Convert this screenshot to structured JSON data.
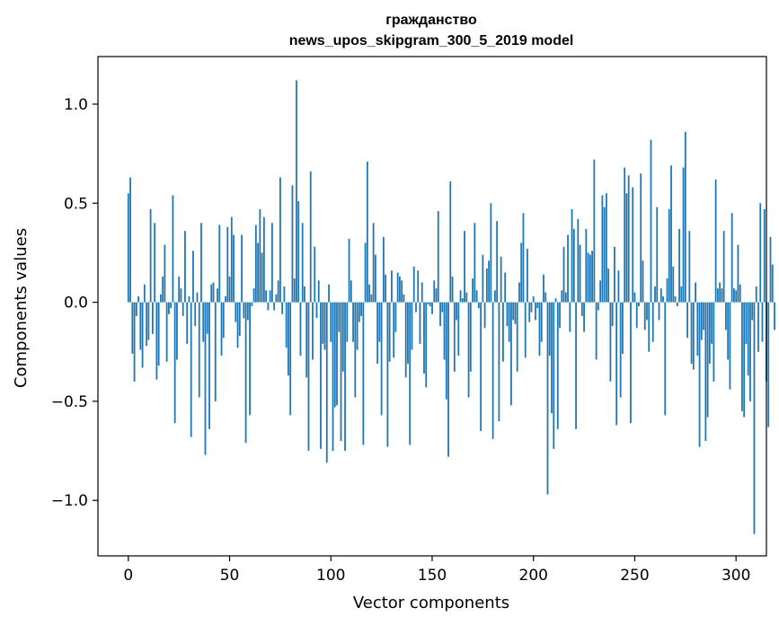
{
  "chart_data": {
    "type": "bar",
    "title_line1": "гражданство",
    "title_line2": "news_upos_skipgram_300_5_2019 model",
    "xlabel": "Vector components",
    "ylabel": "Components values",
    "xlim": [
      -15,
      315
    ],
    "ylim": [
      -1.28,
      1.24
    ],
    "xticks": [
      0,
      50,
      100,
      150,
      200,
      250,
      300
    ],
    "xtick_labels": [
      "0",
      "50",
      "100",
      "150",
      "200",
      "250",
      "300"
    ],
    "yticks": [
      -1.0,
      -0.5,
      0.0,
      0.5,
      1.0
    ],
    "ytick_labels": [
      "−1.0",
      "−0.5",
      "0.0",
      "0.5",
      "1.0"
    ],
    "grid": false,
    "bar_color": "#1f77b4",
    "values": [
      0.55,
      0.63,
      -0.26,
      -0.4,
      -0.07,
      0.03,
      -0.24,
      -0.33,
      0.09,
      -0.22,
      -0.19,
      0.47,
      -0.16,
      0.4,
      -0.39,
      -0.32,
      0.04,
      0.13,
      0.29,
      -0.3,
      -0.06,
      -0.03,
      0.54,
      -0.61,
      -0.29,
      0.13,
      0.07,
      -0.07,
      0.36,
      -0.21,
      0.03,
      -0.68,
      0.26,
      -0.12,
      0.05,
      -0.48,
      0.4,
      -0.2,
      -0.77,
      -0.16,
      -0.64,
      0.09,
      0.1,
      -0.5,
      0.07,
      0.39,
      -0.27,
      -0.18,
      0.03,
      0.38,
      0.13,
      0.43,
      0.34,
      -0.1,
      -0.23,
      -0.17,
      0.34,
      -0.08,
      -0.71,
      -0.09,
      -0.57,
      -0.02,
      0.07,
      0.39,
      0.3,
      0.47,
      0.25,
      0.43,
      0.06,
      -0.04,
      0.06,
      0.4,
      -0.04,
      0.04,
      0.11,
      0.63,
      -0.06,
      0.08,
      -0.23,
      -0.37,
      -0.57,
      0.59,
      0.12,
      1.12,
      0.51,
      -0.27,
      0.4,
      0.08,
      -0.38,
      -0.75,
      0.66,
      -0.29,
      0.28,
      -0.08,
      0.11,
      -0.74,
      -0.21,
      -0.24,
      -0.81,
      0.09,
      -0.2,
      -0.75,
      -0.53,
      -0.52,
      -0.15,
      -0.7,
      -0.35,
      -0.75,
      -0.2,
      0.32,
      0.11,
      -0.2,
      -0.48,
      -0.24,
      -0.1,
      -0.07,
      -0.72,
      0.3,
      0.71,
      0.09,
      0.04,
      0.4,
      0.24,
      -0.31,
      -0.2,
      -0.57,
      0.33,
      0.14,
      -0.73,
      -0.3,
      0.16,
      -0.28,
      -0.15,
      0.15,
      0.13,
      0.11,
      0.04,
      -0.38,
      -0.31,
      -0.72,
      -0.24,
      0.18,
      -0.05,
      0.16,
      -0.21,
      0.1,
      -0.36,
      -0.43,
      -0.01,
      -0.02,
      -0.06,
      0.11,
      0.07,
      0.46,
      -0.12,
      -0.05,
      -0.29,
      -0.49,
      -0.78,
      0.61,
      0.13,
      -0.35,
      -0.09,
      -0.27,
      0.06,
      0.02,
      0.36,
      0.05,
      -0.48,
      -0.35,
      0.12,
      0.4,
      0.06,
      -0.03,
      -0.65,
      0.24,
      -0.13,
      0.17,
      0.21,
      0.5,
      -0.69,
      0.06,
      0.41,
      -0.6,
      0.23,
      -0.3,
      0.15,
      -0.12,
      -0.2,
      -0.52,
      -0.09,
      -0.11,
      -0.35,
      0.1,
      0.3,
      0.45,
      -0.28,
      0.27,
      -0.1,
      -0.05,
      0.03,
      -0.09,
      -0.03,
      -0.27,
      -0.2,
      0.14,
      0.05,
      -0.97,
      -0.27,
      -0.56,
      -0.74,
      0.02,
      -0.64,
      -0.13,
      0.06,
      0.28,
      0.05,
      0.34,
      -0.15,
      0.47,
      0.37,
      -0.64,
      0.42,
      0.29,
      -0.07,
      -0.15,
      0.37,
      0.25,
      0.24,
      0.26,
      0.72,
      -0.29,
      -0.04,
      0.11,
      0.54,
      0.48,
      0.55,
      0.17,
      -0.4,
      -0.12,
      0.28,
      -0.62,
      0.16,
      -0.48,
      -0.26,
      0.68,
      0.55,
      0.64,
      -0.61,
      0.58,
      0.05,
      -0.13,
      -0.02,
      0.65,
      0.21,
      -0.14,
      -0.09,
      -0.25,
      0.82,
      -0.2,
      0.08,
      0.48,
      -0.09,
      0.07,
      0.03,
      -0.57,
      0.12,
      0.47,
      0.69,
      0.18,
      0.03,
      -0.02,
      0.37,
      0.08,
      0.68,
      0.86,
      -0.18,
      0.36,
      -0.31,
      -0.34,
      0.1,
      -0.27,
      -0.73,
      -0.19,
      -0.14,
      -0.7,
      -0.58,
      -0.31,
      -0.21,
      -0.4,
      0.62,
      0.07,
      0.1,
      0.07,
      0.36,
      -0.14,
      -0.29,
      -0.44,
      0.45,
      0.07,
      0.06,
      0.29,
      0.09,
      -0.55,
      -0.58,
      -0.21,
      -0.37,
      -0.5,
      -0.09,
      -1.17,
      0.08,
      -0.25,
      0.5,
      -0.2,
      0.47,
      -0.4,
      -0.63,
      0.33,
      0.19,
      -0.14
    ]
  }
}
